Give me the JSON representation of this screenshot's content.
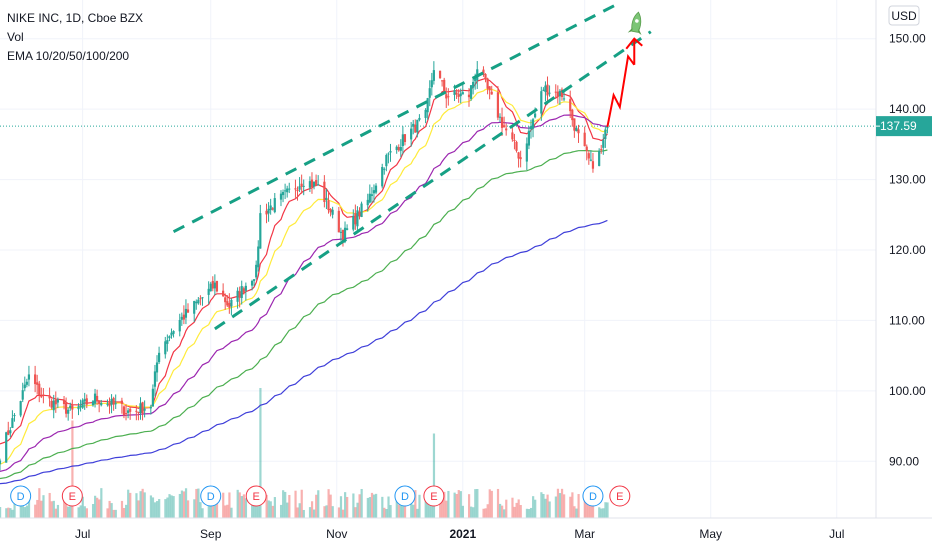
{
  "legend": {
    "symbol": "NIKE INC, 1D, Cboe BZX",
    "vol": "Vol",
    "ema": "EMA 10/20/50/100/200"
  },
  "currency": "USD",
  "last_price": "137.59",
  "colors": {
    "up": "#26a69a",
    "down": "#ef5350",
    "ema10": "#f23645",
    "ema20": "#ffeb3b",
    "ema50": "#9c27b0",
    "ema100": "#4caf50",
    "ema200": "#3f3fd9",
    "trend": "#16a085",
    "arrow": "#ff0000",
    "rocket": "#7cc576",
    "price_line": "#26a69a"
  },
  "chart_data": {
    "type": "candlestick",
    "y_ticks": [
      "150.00",
      "140.00",
      "130.00",
      "120.00",
      "110.00",
      "100.00",
      "90.00"
    ],
    "ylim": [
      84.5,
      155.5
    ],
    "x_ticks": [
      {
        "label": "Jul",
        "bold": false
      },
      {
        "label": "Sep",
        "bold": false
      },
      {
        "label": "Nov",
        "bold": false
      },
      {
        "label": "2021",
        "bold": true
      },
      {
        "label": "Mar",
        "bold": false
      },
      {
        "label": "May",
        "bold": false
      },
      {
        "label": "Jul",
        "bold": false
      }
    ],
    "x_range": [
      "2020-05-22",
      "2021-07-20"
    ],
    "last_date": "2021-03-12",
    "last_close": 137.59,
    "anchors": [
      {
        "date": "2020-05-22",
        "close": 91
      },
      {
        "date": "2020-06-05",
        "close": 102
      },
      {
        "date": "2020-06-12",
        "close": 99
      },
      {
        "date": "2020-06-26",
        "close": 97
      },
      {
        "date": "2020-07-07",
        "close": 99
      },
      {
        "date": "2020-07-24",
        "close": 97
      },
      {
        "date": "2020-08-03",
        "close": 98
      },
      {
        "date": "2020-08-07",
        "close": 106
      },
      {
        "date": "2020-08-17",
        "close": 110
      },
      {
        "date": "2020-08-27",
        "close": 113
      },
      {
        "date": "2020-09-03",
        "close": 115
      },
      {
        "date": "2020-09-10",
        "close": 112
      },
      {
        "date": "2020-09-23",
        "close": 117
      },
      {
        "date": "2020-09-25",
        "close": 125
      },
      {
        "date": "2020-10-08",
        "close": 128
      },
      {
        "date": "2020-10-16",
        "close": 130
      },
      {
        "date": "2020-10-23",
        "close": 129
      },
      {
        "date": "2020-10-30",
        "close": 125
      },
      {
        "date": "2020-11-04",
        "close": 122
      },
      {
        "date": "2020-11-16",
        "close": 127
      },
      {
        "date": "2020-11-25",
        "close": 133
      },
      {
        "date": "2020-12-04",
        "close": 136
      },
      {
        "date": "2020-12-14",
        "close": 139
      },
      {
        "date": "2020-12-18",
        "close": 146
      },
      {
        "date": "2020-12-24",
        "close": 142
      },
      {
        "date": "2021-01-04",
        "close": 142
      },
      {
        "date": "2021-01-08",
        "close": 146
      },
      {
        "date": "2021-01-20",
        "close": 138
      },
      {
        "date": "2021-01-29",
        "close": 133
      },
      {
        "date": "2021-02-09",
        "close": 143
      },
      {
        "date": "2021-02-19",
        "close": 142
      },
      {
        "date": "2021-02-26",
        "close": 136
      },
      {
        "date": "2021-03-04",
        "close": 132
      },
      {
        "date": "2021-03-09",
        "close": 134
      },
      {
        "date": "2021-03-12",
        "close": 137.59
      }
    ],
    "ema": [
      {
        "period": 10,
        "end": 136.5
      },
      {
        "period": 20,
        "end": 137.0
      },
      {
        "period": 50,
        "end": 137.6
      },
      {
        "period": 100,
        "end": 134.2
      },
      {
        "period": 200,
        "end": 124.2
      }
    ],
    "volume_spikes": [
      {
        "date": "2020-06-26",
        "rel": 0.75
      },
      {
        "date": "2020-09-25",
        "rel": 1.0
      },
      {
        "date": "2020-12-18",
        "rel": 0.65
      }
    ],
    "events": [
      {
        "letter": "D",
        "date": "2020-06-01",
        "kind": "dividend"
      },
      {
        "letter": "E",
        "date": "2020-06-26",
        "kind": "earnings"
      },
      {
        "letter": "D",
        "date": "2020-09-01",
        "kind": "dividend"
      },
      {
        "letter": "E",
        "date": "2020-09-23",
        "kind": "earnings"
      },
      {
        "letter": "D",
        "date": "2020-12-04",
        "kind": "dividend"
      },
      {
        "letter": "E",
        "date": "2020-12-18",
        "kind": "earnings"
      },
      {
        "letter": "D",
        "date": "2021-03-05",
        "kind": "dividend"
      },
      {
        "letter": "E",
        "date": "2021-03-18",
        "kind": "earnings"
      }
    ],
    "trendlines": [
      {
        "from": {
          "date": "2020-08-14",
          "price": 122.6
        },
        "to": {
          "date": "2021-03-16",
          "price": 154.8
        }
      },
      {
        "from": {
          "date": "2020-09-03",
          "price": 108.8
        },
        "to": {
          "date": "2021-04-02",
          "price": 151.0
        }
      }
    ],
    "projection": [
      {
        "date": "2021-03-12",
        "price": 137.5
      },
      {
        "date": "2021-03-15",
        "price": 142.0
      },
      {
        "date": "2021-03-18",
        "price": 140.3
      },
      {
        "date": "2021-03-22",
        "price": 147.5
      },
      {
        "date": "2021-03-25",
        "price": 146.3
      }
    ]
  }
}
